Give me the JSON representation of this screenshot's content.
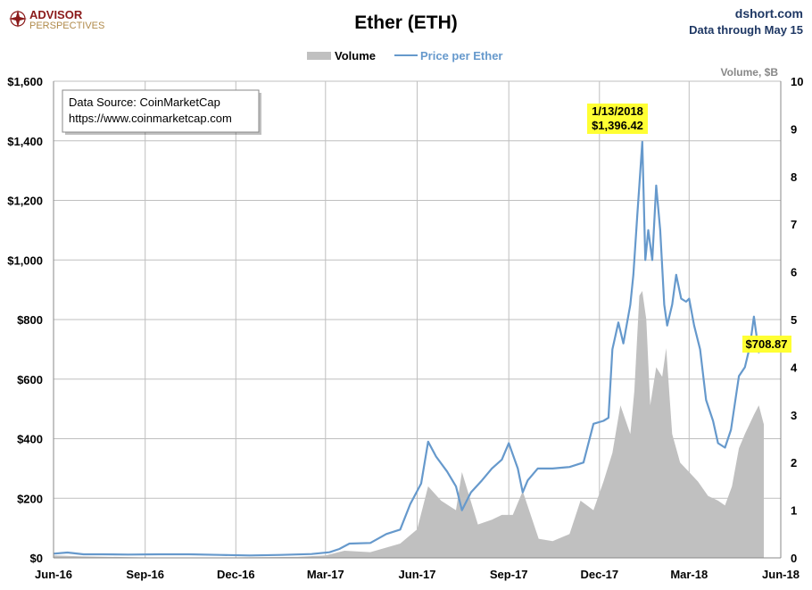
{
  "brand": {
    "line1": "ADVISOR",
    "line2": "PERSPECTIVES"
  },
  "source_site": "dshort.com",
  "data_through": "Data through May 15",
  "chart_data": {
    "type": "line",
    "title": "Ether (ETH)",
    "legend": {
      "volume": "Volume",
      "price": "Price per Ether",
      "placement": "top-center"
    },
    "y_left": {
      "label": "",
      "min": 0,
      "max": 1600,
      "ticks": [
        {
          "v": 0,
          "t": "$0"
        },
        {
          "v": 200,
          "t": "$200"
        },
        {
          "v": 400,
          "t": "$400"
        },
        {
          "v": 600,
          "t": "$600"
        },
        {
          "v": 800,
          "t": "$800"
        },
        {
          "v": 1000,
          "t": "$1,000"
        },
        {
          "v": 1200,
          "t": "$1,200"
        },
        {
          "v": 1400,
          "t": "$1,400"
        },
        {
          "v": 1600,
          "t": "$1,600"
        }
      ]
    },
    "y_right": {
      "label": "Volume, $B",
      "min": 0,
      "max": 10,
      "ticks": [
        "0",
        "1",
        "2",
        "3",
        "4",
        "5",
        "6",
        "7",
        "8",
        "9",
        "10"
      ]
    },
    "x_axis": {
      "start": "2016-06-01",
      "end": "2018-06-01",
      "ticks": [
        {
          "date": "2016-06-01",
          "t": "Jun-16"
        },
        {
          "date": "2016-09-01",
          "t": "Sep-16"
        },
        {
          "date": "2016-12-01",
          "t": "Dec-16"
        },
        {
          "date": "2017-03-01",
          "t": "Mar-17"
        },
        {
          "date": "2017-06-01",
          "t": "Jun-17"
        },
        {
          "date": "2017-09-01",
          "t": "Sep-17"
        },
        {
          "date": "2017-12-01",
          "t": "Dec-17"
        },
        {
          "date": "2018-03-01",
          "t": "Mar-18"
        },
        {
          "date": "2018-06-01",
          "t": "Jun-18"
        }
      ]
    },
    "grid": true,
    "colors": {
      "price": "#6699CC",
      "volume": "#C0C0C0",
      "highlight": "#FFFF33"
    },
    "series": [
      {
        "name": "Price per Ether",
        "axis": "left",
        "points": [
          [
            "2016-06-01",
            14
          ],
          [
            "2016-06-15",
            18
          ],
          [
            "2016-07-01",
            12
          ],
          [
            "2016-07-20",
            12
          ],
          [
            "2016-08-15",
            11
          ],
          [
            "2016-09-15",
            12
          ],
          [
            "2016-10-15",
            12
          ],
          [
            "2016-11-15",
            10
          ],
          [
            "2016-12-15",
            8
          ],
          [
            "2017-01-15",
            10
          ],
          [
            "2017-02-15",
            13
          ],
          [
            "2017-03-05",
            19
          ],
          [
            "2017-03-15",
            30
          ],
          [
            "2017-03-25",
            48
          ],
          [
            "2017-04-15",
            50
          ],
          [
            "2017-05-01",
            80
          ],
          [
            "2017-05-15",
            95
          ],
          [
            "2017-05-25",
            180
          ],
          [
            "2017-06-05",
            250
          ],
          [
            "2017-06-12",
            390
          ],
          [
            "2017-06-20",
            340
          ],
          [
            "2017-07-01",
            290
          ],
          [
            "2017-07-10",
            240
          ],
          [
            "2017-07-16",
            160
          ],
          [
            "2017-07-25",
            220
          ],
          [
            "2017-08-05",
            260
          ],
          [
            "2017-08-15",
            300
          ],
          [
            "2017-08-25",
            330
          ],
          [
            "2017-09-01",
            385
          ],
          [
            "2017-09-10",
            300
          ],
          [
            "2017-09-15",
            220
          ],
          [
            "2017-09-20",
            260
          ],
          [
            "2017-09-30",
            300
          ],
          [
            "2017-10-15",
            300
          ],
          [
            "2017-11-01",
            305
          ],
          [
            "2017-11-15",
            320
          ],
          [
            "2017-11-25",
            450
          ],
          [
            "2017-12-05",
            460
          ],
          [
            "2017-12-10",
            470
          ],
          [
            "2017-12-14",
            700
          ],
          [
            "2017-12-20",
            790
          ],
          [
            "2017-12-25",
            720
          ],
          [
            "2018-01-01",
            850
          ],
          [
            "2018-01-04",
            950
          ],
          [
            "2018-01-08",
            1150
          ],
          [
            "2018-01-10",
            1250
          ],
          [
            "2018-01-13",
            1396.42
          ],
          [
            "2018-01-16",
            1000
          ],
          [
            "2018-01-19",
            1100
          ],
          [
            "2018-01-23",
            1000
          ],
          [
            "2018-01-27",
            1250
          ],
          [
            "2018-01-31",
            1100
          ],
          [
            "2018-02-04",
            850
          ],
          [
            "2018-02-07",
            780
          ],
          [
            "2018-02-12",
            850
          ],
          [
            "2018-02-16",
            950
          ],
          [
            "2018-02-21",
            870
          ],
          [
            "2018-02-26",
            860
          ],
          [
            "2018-03-01",
            870
          ],
          [
            "2018-03-06",
            780
          ],
          [
            "2018-03-12",
            700
          ],
          [
            "2018-03-18",
            530
          ],
          [
            "2018-03-25",
            460
          ],
          [
            "2018-03-30",
            385
          ],
          [
            "2018-04-06",
            370
          ],
          [
            "2018-04-12",
            430
          ],
          [
            "2018-04-20",
            610
          ],
          [
            "2018-04-26",
            640
          ],
          [
            "2018-05-01",
            710
          ],
          [
            "2018-05-05",
            810
          ],
          [
            "2018-05-10",
            690
          ],
          [
            "2018-05-15",
            708.87
          ]
        ]
      },
      {
        "name": "Volume",
        "axis": "right",
        "points": [
          [
            "2016-06-01",
            0.05
          ],
          [
            "2016-07-01",
            0.03
          ],
          [
            "2016-09-01",
            0.01
          ],
          [
            "2016-12-01",
            0.01
          ],
          [
            "2017-02-01",
            0.02
          ],
          [
            "2017-03-01",
            0.05
          ],
          [
            "2017-03-20",
            0.15
          ],
          [
            "2017-04-15",
            0.12
          ],
          [
            "2017-05-15",
            0.3
          ],
          [
            "2017-06-01",
            0.6
          ],
          [
            "2017-06-12",
            1.5
          ],
          [
            "2017-06-25",
            1.2
          ],
          [
            "2017-07-10",
            1.0
          ],
          [
            "2017-07-16",
            1.8
          ],
          [
            "2017-08-01",
            0.7
          ],
          [
            "2017-08-15",
            0.8
          ],
          [
            "2017-08-25",
            0.9
          ],
          [
            "2017-09-05",
            0.9
          ],
          [
            "2017-09-15",
            1.4
          ],
          [
            "2017-10-01",
            0.4
          ],
          [
            "2017-10-15",
            0.35
          ],
          [
            "2017-11-01",
            0.5
          ],
          [
            "2017-11-12",
            1.2
          ],
          [
            "2017-11-25",
            1.0
          ],
          [
            "2017-12-05",
            1.6
          ],
          [
            "2017-12-14",
            2.2
          ],
          [
            "2017-12-22",
            3.2
          ],
          [
            "2018-01-01",
            2.6
          ],
          [
            "2018-01-05",
            3.5
          ],
          [
            "2018-01-10",
            5.5
          ],
          [
            "2018-01-13",
            5.6
          ],
          [
            "2018-01-17",
            5.0
          ],
          [
            "2018-01-21",
            3.2
          ],
          [
            "2018-01-27",
            4.0
          ],
          [
            "2018-02-02",
            3.8
          ],
          [
            "2018-02-06",
            4.4
          ],
          [
            "2018-02-12",
            2.6
          ],
          [
            "2018-02-20",
            2.0
          ],
          [
            "2018-03-01",
            1.8
          ],
          [
            "2018-03-10",
            1.6
          ],
          [
            "2018-03-20",
            1.3
          ],
          [
            "2018-03-30",
            1.2
          ],
          [
            "2018-04-06",
            1.1
          ],
          [
            "2018-04-13",
            1.5
          ],
          [
            "2018-04-20",
            2.3
          ],
          [
            "2018-04-26",
            2.6
          ],
          [
            "2018-05-05",
            3.0
          ],
          [
            "2018-05-10",
            3.2
          ],
          [
            "2018-05-15",
            2.8
          ]
        ]
      }
    ],
    "source_box": {
      "line1": "Data Source: CoinMarketCap",
      "line2": "https://www.coinmarketcap.com"
    },
    "annotations": {
      "peak_date": "1/13/2018",
      "peak_price": "$1,396.42",
      "last_price": "$708.87"
    }
  }
}
